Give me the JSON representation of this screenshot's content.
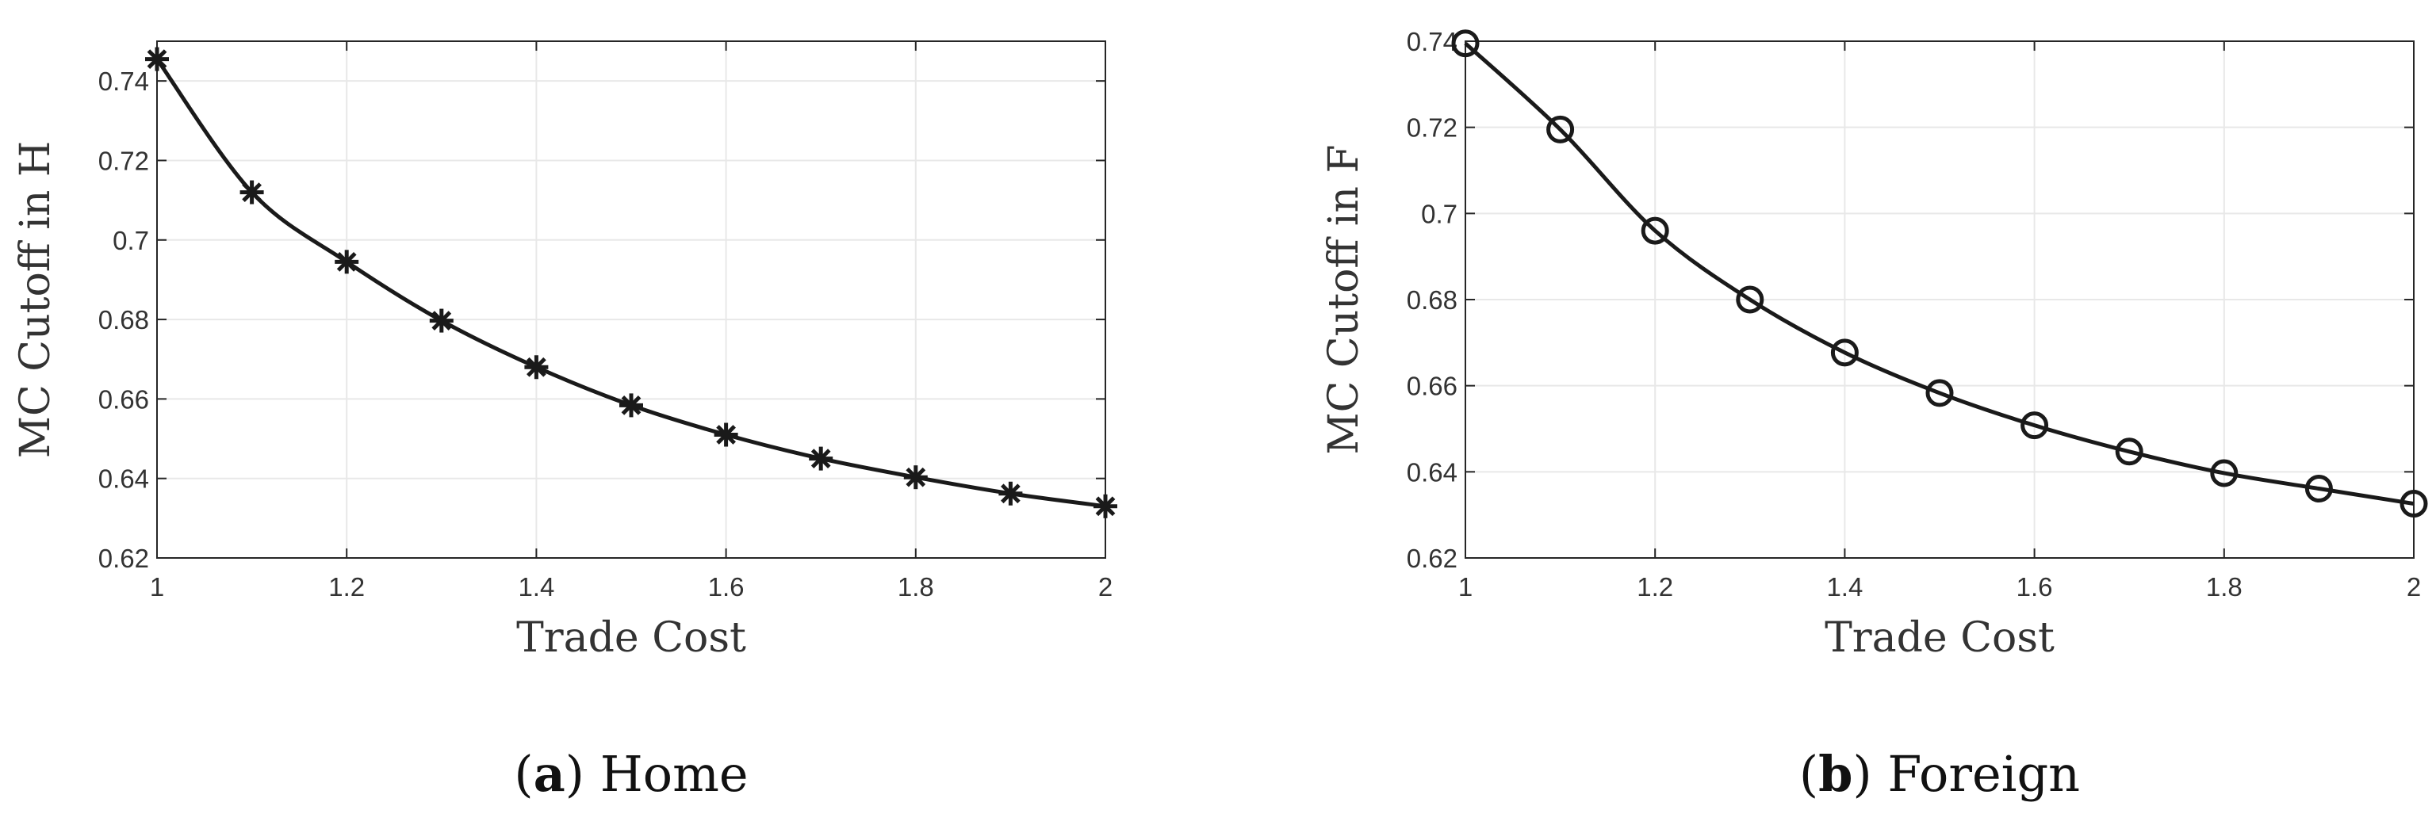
{
  "chart_data": [
    {
      "type": "line",
      "caption_letter": "a",
      "caption_text": "Home",
      "xlabel": "Trade Cost",
      "ylabel": "MC Cutoff in H",
      "xlim": [
        1,
        2
      ],
      "ylim": [
        0.62,
        0.75
      ],
      "x_ticks": [
        1,
        1.2,
        1.4,
        1.6,
        1.8,
        2
      ],
      "x_tick_labels": [
        "1",
        "1.2",
        "1.4",
        "1.6",
        "1.8",
        "2"
      ],
      "y_ticks": [
        0.62,
        0.64,
        0.66,
        0.68,
        0.7,
        0.72,
        0.74
      ],
      "y_tick_labels": [
        "0.62",
        "0.64",
        "0.66",
        "0.68",
        "0.7",
        "0.72",
        "0.74"
      ],
      "grid": true,
      "marker": "asterisk",
      "series": [
        {
          "x": [
            1,
            1.1,
            1.2,
            1.3,
            1.4,
            1.5,
            1.6,
            1.7,
            1.8,
            1.9,
            2
          ],
          "values": [
            0.7455,
            0.712,
            0.6945,
            0.6797,
            0.668,
            0.6584,
            0.651,
            0.645,
            0.6403,
            0.6362,
            0.633
          ]
        }
      ]
    },
    {
      "type": "line",
      "caption_letter": "b",
      "caption_text": "Foreign",
      "xlabel": "Trade Cost",
      "ylabel": "MC Cutoff in F",
      "xlim": [
        1,
        2
      ],
      "ylim": [
        0.62,
        0.74
      ],
      "x_ticks": [
        1,
        1.2,
        1.4,
        1.6,
        1.8,
        2
      ],
      "x_tick_labels": [
        "1",
        "1.2",
        "1.4",
        "1.6",
        "1.8",
        "2"
      ],
      "y_ticks": [
        0.62,
        0.64,
        0.66,
        0.68,
        0.7,
        0.72,
        0.74
      ],
      "y_tick_labels": [
        "0.62",
        "0.64",
        "0.66",
        "0.68",
        "0.7",
        "0.72",
        "0.74"
      ],
      "grid": true,
      "marker": "circle",
      "series": [
        {
          "x": [
            1,
            1.1,
            1.2,
            1.3,
            1.4,
            1.5,
            1.6,
            1.7,
            1.8,
            1.9,
            2
          ],
          "values": [
            0.7395,
            0.7195,
            0.696,
            0.68,
            0.6677,
            0.6583,
            0.6508,
            0.6447,
            0.6397,
            0.6361,
            0.6326
          ]
        }
      ]
    }
  ]
}
